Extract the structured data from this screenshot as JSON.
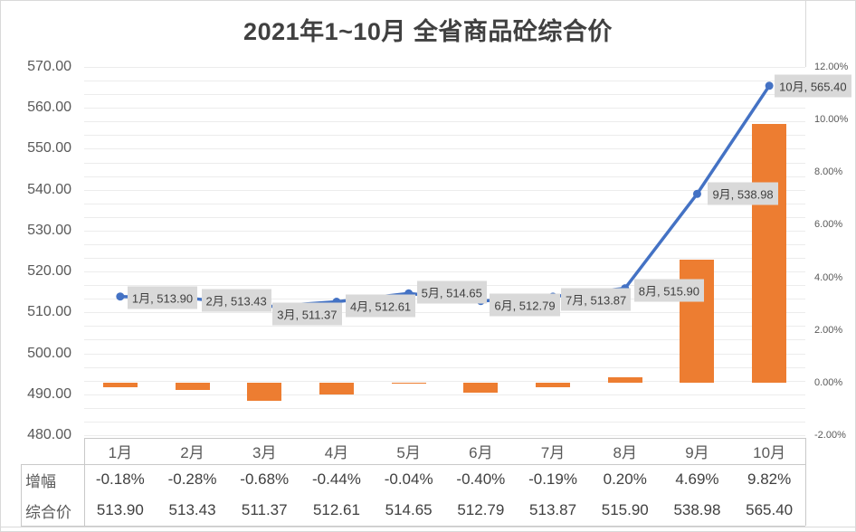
{
  "title": "2021年1~10月 全省商品砼综合价",
  "chart_data": {
    "type": "combo",
    "categories": [
      "1月",
      "2月",
      "3月",
      "4月",
      "5月",
      "6月",
      "7月",
      "8月",
      "9月",
      "10月"
    ],
    "series": [
      {
        "name": "增幅",
        "chart": "bar",
        "axis": "right",
        "color": "#ED7D31",
        "values": [
          -0.18,
          -0.28,
          -0.68,
          -0.44,
          -0.04,
          -0.4,
          -0.19,
          0.2,
          4.69,
          9.82
        ],
        "labels": [
          "-0.18%",
          "-0.28%",
          "-0.68%",
          "-0.44%",
          "-0.04%",
          "-0.40%",
          "-0.19%",
          "0.20%",
          "4.69%",
          "9.82%"
        ]
      },
      {
        "name": "综合价",
        "chart": "line",
        "axis": "left",
        "color": "#4472C4",
        "values": [
          513.9,
          513.43,
          511.37,
          512.61,
          514.65,
          512.79,
          513.87,
          515.9,
          538.98,
          565.4
        ],
        "labels": [
          "513.90",
          "513.43",
          "511.37",
          "512.61",
          "514.65",
          "512.79",
          "513.87",
          "515.90",
          "538.98",
          "565.40"
        ]
      }
    ],
    "point_labels": [
      "1月, 513.90",
      "2月, 513.43",
      "3月, 511.37",
      "4月, 512.61",
      "5月, 514.65",
      "6月, 512.79",
      "7月, 513.87",
      "8月, 515.90",
      "9月, 538.98",
      "10月, 565.40"
    ],
    "left_axis": {
      "min": 480,
      "max": 570,
      "step": 10,
      "ticks": [
        "570.00",
        "560.00",
        "550.00",
        "540.00",
        "530.00",
        "520.00",
        "510.00",
        "500.00",
        "490.00",
        "480.00"
      ]
    },
    "right_axis": {
      "min": -2,
      "max": 12,
      "step": 2,
      "ticks": [
        "12.00%",
        "10.00%",
        "8.00%",
        "6.00%",
        "4.00%",
        "2.00%",
        "0.00%",
        "-2.00%"
      ]
    },
    "gridlines": true,
    "legend": "none",
    "table": {
      "row_headers": [
        "增幅",
        "综合价"
      ]
    }
  },
  "colors": {
    "bar": "#ED7D31",
    "line": "#4472C4",
    "axis_text": "#595959",
    "title_text": "#404040",
    "grid": "#ECECEC",
    "table_border": "#C9C9C9",
    "point_label_bg": "#D9D9D9",
    "point_label_text": "#404040"
  }
}
